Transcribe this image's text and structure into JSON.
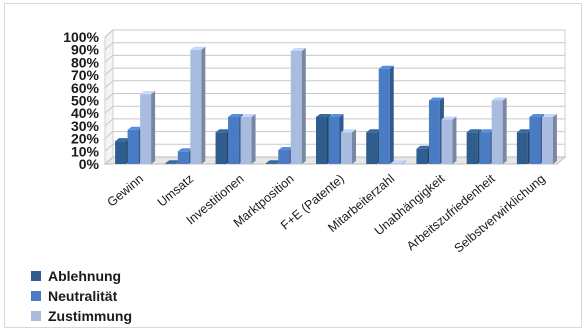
{
  "chart_data": {
    "type": "bar",
    "categories": [
      "Gewinn",
      "Umsatz",
      "Investitionen",
      "Marktposition",
      "F+E (Patente)",
      "Mitarbeiterzahl",
      "Unabhängigkeit",
      "Arbeitszufriedenheit",
      "Selbstverwirklichung"
    ],
    "series": [
      {
        "name": "Ablehnung",
        "color": "#2e5d8e",
        "values": [
          18,
          0,
          25,
          0,
          37,
          25,
          12,
          25,
          25
        ]
      },
      {
        "name": "Neutralität",
        "color": "#4a7cc4",
        "values": [
          27,
          10,
          37,
          11,
          37,
          75,
          50,
          25,
          37
        ]
      },
      {
        "name": "Zustimmung",
        "color": "#a9bce0",
        "values": [
          55,
          90,
          37,
          89,
          25,
          0,
          35,
          50,
          37
        ]
      }
    ],
    "yticks": [
      "0%",
      "10%",
      "20%",
      "30%",
      "40%",
      "50%",
      "60%",
      "70%",
      "80%",
      "90%",
      "100%"
    ],
    "ylim": [
      0,
      100
    ],
    "grid": true,
    "legend_position": "bottom-left",
    "title": "",
    "xlabel": "",
    "ylabel": ""
  }
}
